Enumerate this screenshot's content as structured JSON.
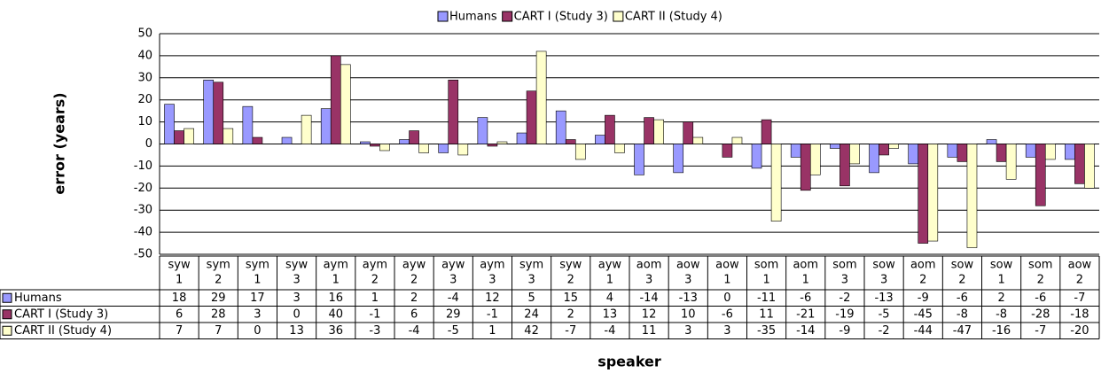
{
  "chart_data": {
    "type": "bar",
    "xlabel": "speaker",
    "ylabel": "error (years)",
    "categories": [
      [
        "syw",
        "1"
      ],
      [
        "sym",
        "2"
      ],
      [
        "sym",
        "1"
      ],
      [
        "syw",
        "3"
      ],
      [
        "aym",
        "1"
      ],
      [
        "aym",
        "2"
      ],
      [
        "ayw",
        "2"
      ],
      [
        "ayw",
        "3"
      ],
      [
        "aym",
        "3"
      ],
      [
        "sym",
        "3"
      ],
      [
        "syw",
        "2"
      ],
      [
        "ayw",
        "1"
      ],
      [
        "aom",
        "3"
      ],
      [
        "aow",
        "3"
      ],
      [
        "aow",
        "1"
      ],
      [
        "som",
        "1"
      ],
      [
        "aom",
        "1"
      ],
      [
        "som",
        "3"
      ],
      [
        "sow",
        "3"
      ],
      [
        "aom",
        "2"
      ],
      [
        "sow",
        "2"
      ],
      [
        "sow",
        "1"
      ],
      [
        "som",
        "2"
      ],
      [
        "aow",
        "2"
      ]
    ],
    "series": [
      {
        "name": "Humans",
        "color": "#9999ff",
        "values": [
          18,
          29,
          17,
          3,
          16,
          1,
          2,
          -4,
          12,
          5,
          15,
          4,
          -14,
          -13,
          0,
          -11,
          -6,
          -2,
          -13,
          -9,
          -6,
          2,
          -6,
          -7
        ]
      },
      {
        "name": "CART I (Study 3)",
        "color": "#993366",
        "values": [
          6,
          28,
          3,
          0,
          40,
          -1,
          6,
          29,
          -1,
          24,
          2,
          13,
          12,
          10,
          -6,
          11,
          -21,
          -19,
          -5,
          -45,
          -8,
          -8,
          -28,
          -18
        ]
      },
      {
        "name": "CART II (Study 4)",
        "color": "#ffffcc",
        "values": [
          7,
          7,
          0,
          13,
          36,
          -3,
          -4,
          -5,
          1,
          42,
          -7,
          -4,
          11,
          3,
          3,
          -35,
          -14,
          -9,
          -2,
          -44,
          -47,
          -16,
          -7,
          -20
        ]
      }
    ],
    "ylim": [
      -50,
      50
    ],
    "yticks": [
      -50,
      -40,
      -30,
      -20,
      -10,
      0,
      10,
      20,
      30,
      40,
      50
    ],
    "grid": true,
    "legend": "top"
  }
}
